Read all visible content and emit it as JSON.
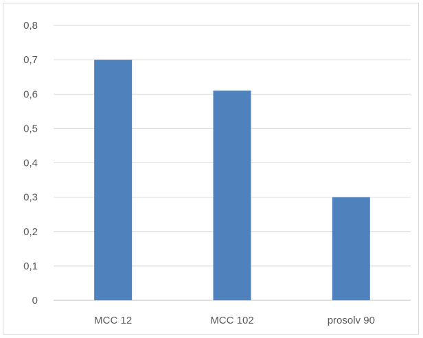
{
  "chart_data": {
    "type": "bar",
    "categories": [
      "MCC 12",
      "MCC 102",
      "prosolv 90"
    ],
    "values": [
      0.7,
      0.61,
      0.3
    ],
    "ylim": [
      0,
      0.8
    ],
    "yticks": [
      "0",
      "0,1",
      "0,2",
      "0,3",
      "0,4",
      "0,5",
      "0,6",
      "0,7",
      "0,8"
    ],
    "grid": true,
    "legend": "none",
    "colors": {
      "bar": "#4f81bd",
      "grid": "#d9d9d9",
      "axis": "#bfbfbf",
      "text": "#595959"
    }
  }
}
